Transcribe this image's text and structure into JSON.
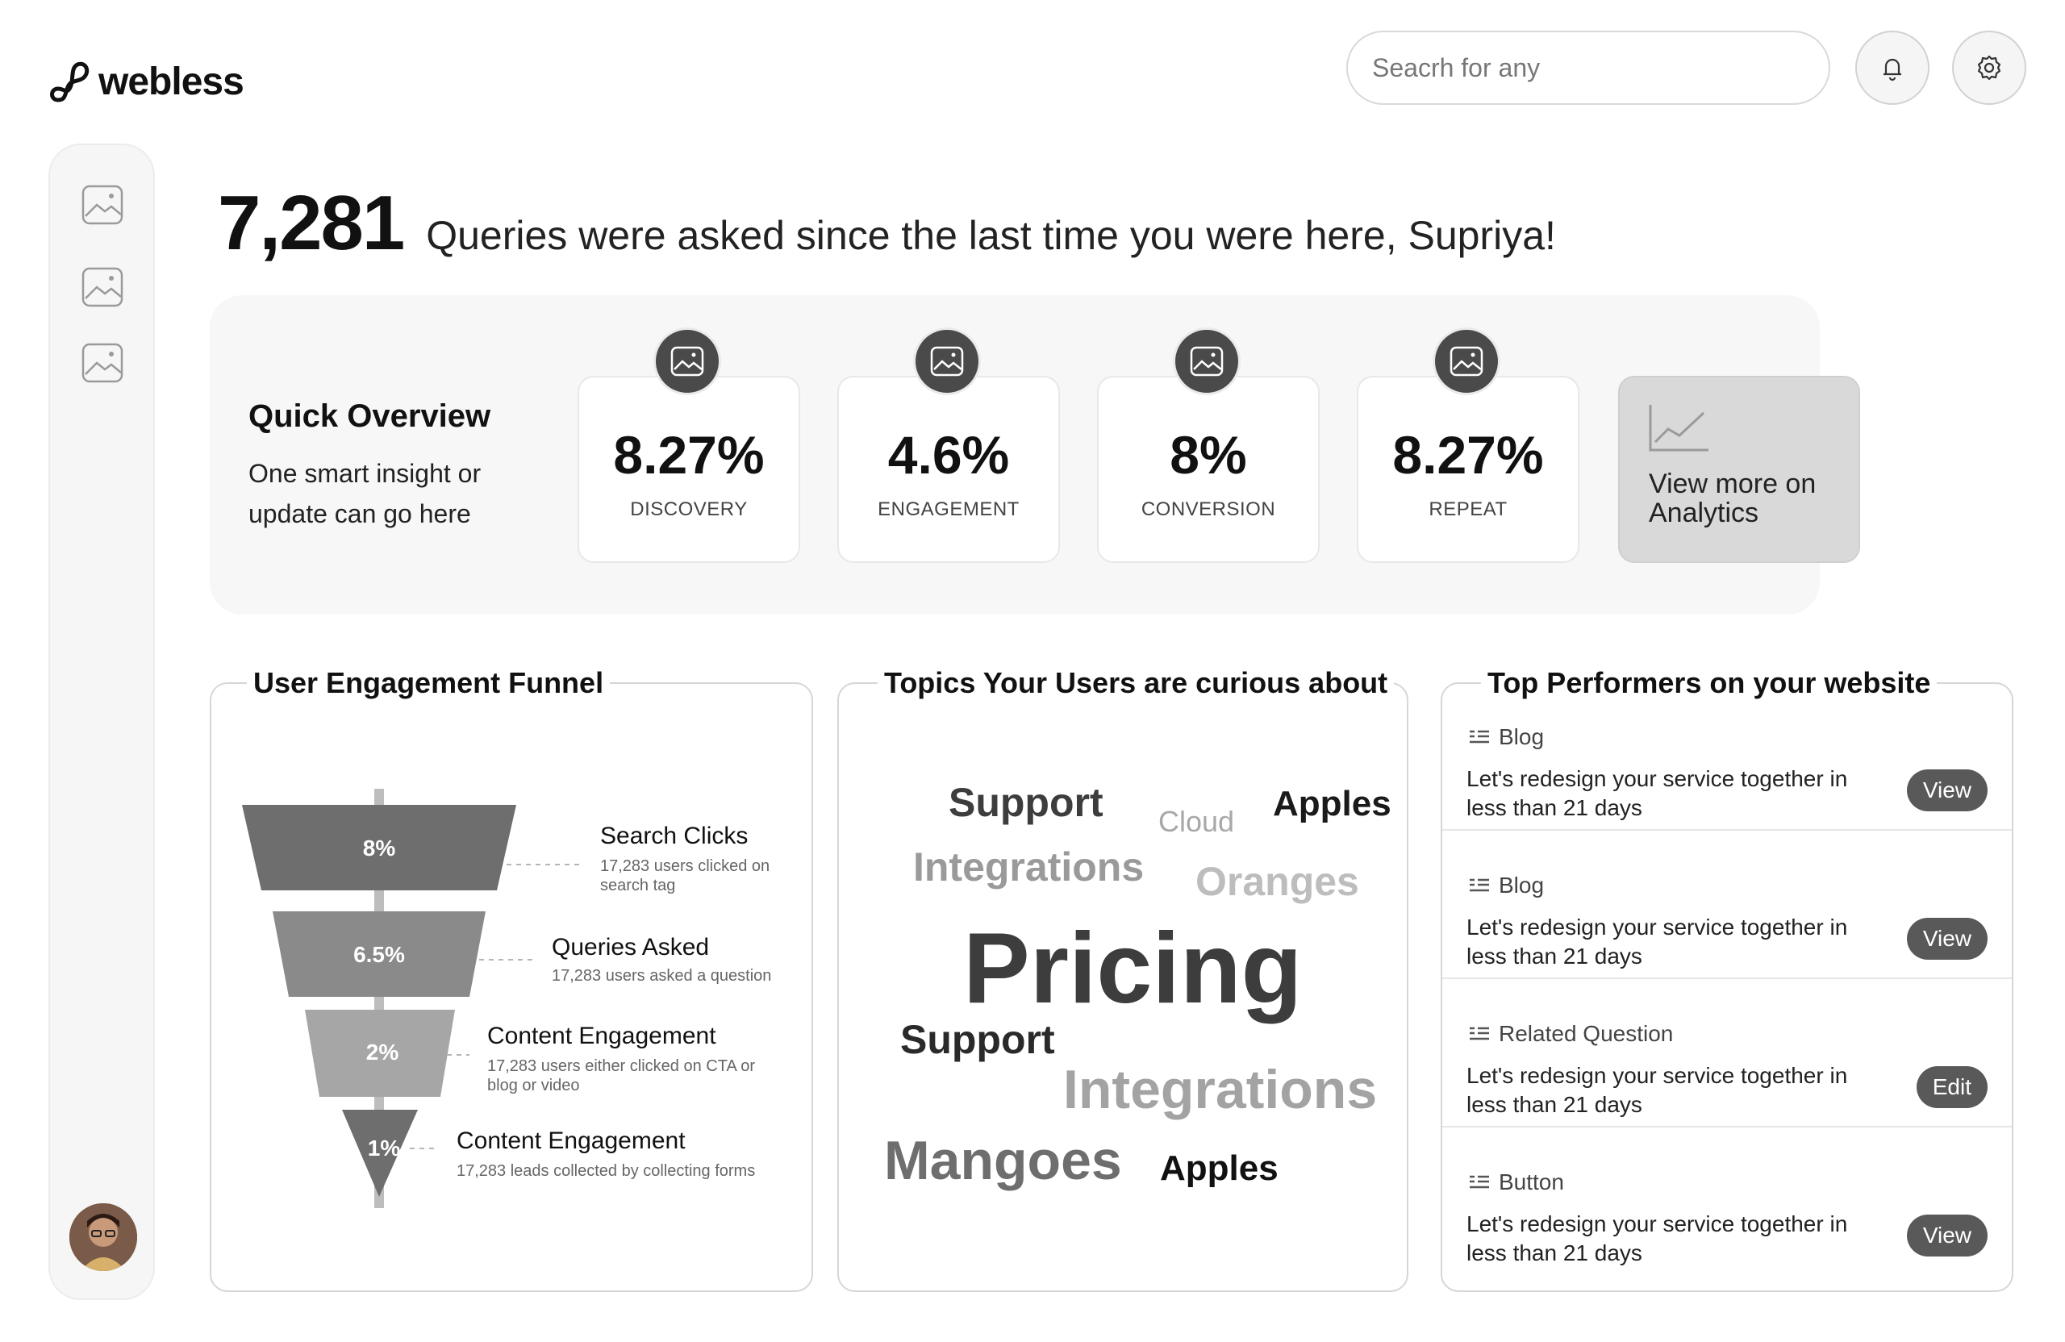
{
  "brand": {
    "name": "webless"
  },
  "search": {
    "placeholder": "Seacrh for any"
  },
  "headline": {
    "count": "7,281",
    "text": "Queries were asked since the last time you were here, Supriya!"
  },
  "overview": {
    "title": "Quick Overview",
    "subtitle": "One smart insight or update can go here",
    "stats": [
      {
        "value": "8.27%",
        "label": "DISCOVERY"
      },
      {
        "value": "4.6%",
        "label": "ENGAGEMENT"
      },
      {
        "value": "8%",
        "label": "CONVERSION"
      },
      {
        "value": "8.27%",
        "label": "REPEAT"
      }
    ],
    "analytics_link": "View more on Analytics"
  },
  "funnel": {
    "title": "User Engagement Funnel",
    "stages": [
      {
        "pct": "8%",
        "label": "Search Clicks",
        "desc": "17,283 users clicked on search tag"
      },
      {
        "pct": "6.5%",
        "label": "Queries Asked",
        "desc": "17,283 users asked a question"
      },
      {
        "pct": "2%",
        "label": "Content Engagement",
        "desc": "17,283 users either clicked on CTA or blog or video"
      },
      {
        "pct": "1%",
        "label": "Content Engagement",
        "desc": "17,283 leads collected by collecting forms"
      }
    ]
  },
  "topics": {
    "title": "Topics Your Users are curious about",
    "words": [
      {
        "text": "Support",
        "color": "#3d3d3d"
      },
      {
        "text": "Cloud",
        "color": "#a8a8a8"
      },
      {
        "text": "Apples",
        "color": "#1a1a1a"
      },
      {
        "text": "Integrations",
        "color": "#9a9a9a"
      },
      {
        "text": "Oranges",
        "color": "#bdbdbd"
      },
      {
        "text": "Pricing",
        "color": "#3d3d3d"
      },
      {
        "text": "Support",
        "color": "#2a2a2a"
      },
      {
        "text": "Integrations",
        "color": "#a3a3a3"
      },
      {
        "text": "Mangoes",
        "color": "#6e6e6e"
      },
      {
        "text": "Apples",
        "color": "#111111"
      }
    ]
  },
  "performers": {
    "title": "Top Performers on your website",
    "items": [
      {
        "type": "Blog",
        "text": "Let's redesign your service together in less than 21 days",
        "action": "View"
      },
      {
        "type": "Blog",
        "text": "Let's redesign your service together in less than 21 days",
        "action": "View"
      },
      {
        "type": "Related Question",
        "text": "Let's redesign your service together in less than 21 days",
        "action": "Edit"
      },
      {
        "type": "Button",
        "text": "Let's redesign your service together in less than 21 days",
        "action": "View"
      }
    ]
  }
}
